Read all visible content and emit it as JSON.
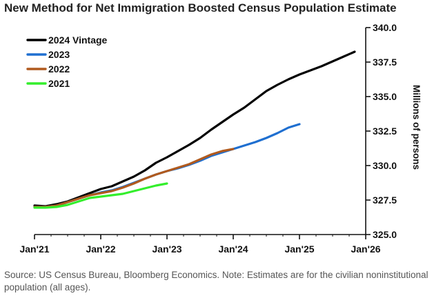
{
  "title": "New Method for Net Immigration Boosted Census Population Estimate",
  "source": "Source: US Census Bureau, Bloomberg Economics. Note: Estimates are for the civilian noninstitutional population (all ages).",
  "chart_data": {
    "type": "line",
    "title": "New Method for Net Immigration Boosted Census Population Estimate",
    "xlabel": "",
    "ylabel": "Millions of persons",
    "x_ticks": [
      "Jan'21",
      "Jan'22",
      "Jan'23",
      "Jan'24",
      "Jan'25",
      "Jan'26"
    ],
    "y_ticks": [
      "325.0",
      "327.5",
      "330.0",
      "332.5",
      "335.0",
      "337.5",
      "340.0"
    ],
    "xlim": [
      "2021-01",
      "2026-01"
    ],
    "ylim": [
      325.0,
      340.0
    ],
    "y_axis_side": "right",
    "grid": false,
    "legend_position": "top-left",
    "series": [
      {
        "name": "2024 Vintage",
        "color": "#000000",
        "x": [
          "2021-01",
          "2021-03",
          "2021-05",
          "2021-07",
          "2021-09",
          "2021-11",
          "2022-01",
          "2022-03",
          "2022-05",
          "2022-07",
          "2022-09",
          "2022-11",
          "2023-01",
          "2023-03",
          "2023-05",
          "2023-07",
          "2023-09",
          "2023-11",
          "2024-01",
          "2024-03",
          "2024-05",
          "2024-07",
          "2024-09",
          "2024-11",
          "2025-01",
          "2025-03",
          "2025-05",
          "2025-07",
          "2025-09",
          "2025-11"
        ],
        "values": [
          327.1,
          327.05,
          327.2,
          327.4,
          327.7,
          328.0,
          328.3,
          328.5,
          328.85,
          329.2,
          329.65,
          330.2,
          330.6,
          331.05,
          331.5,
          332.0,
          332.6,
          333.15,
          333.7,
          334.2,
          334.8,
          335.4,
          335.85,
          336.25,
          336.6,
          336.9,
          337.2,
          337.55,
          337.9,
          338.25
        ]
      },
      {
        "name": "2023",
        "color": "#1f6fd0",
        "x": [
          "2021-01",
          "2021-03",
          "2021-05",
          "2021-07",
          "2021-09",
          "2021-11",
          "2022-01",
          "2022-03",
          "2022-05",
          "2022-07",
          "2022-09",
          "2022-11",
          "2023-01",
          "2023-03",
          "2023-05",
          "2023-07",
          "2023-09",
          "2023-11",
          "2024-01",
          "2024-03",
          "2024-05",
          "2024-07",
          "2024-09",
          "2024-11",
          "2025-01"
        ],
        "values": [
          327.0,
          327.0,
          327.1,
          327.35,
          327.6,
          327.85,
          328.05,
          328.2,
          328.45,
          328.75,
          329.05,
          329.35,
          329.6,
          329.8,
          330.05,
          330.35,
          330.7,
          330.95,
          331.2,
          331.45,
          331.7,
          332.0,
          332.35,
          332.75,
          333.0
        ]
      },
      {
        "name": "2022",
        "color": "#b05a1e",
        "x": [
          "2021-01",
          "2021-03",
          "2021-05",
          "2021-07",
          "2021-09",
          "2021-11",
          "2022-01",
          "2022-03",
          "2022-05",
          "2022-07",
          "2022-09",
          "2022-11",
          "2023-01",
          "2023-03",
          "2023-05",
          "2023-07",
          "2023-09",
          "2023-11",
          "2024-01"
        ],
        "values": [
          327.0,
          327.0,
          327.1,
          327.35,
          327.6,
          327.85,
          328.0,
          328.15,
          328.4,
          328.7,
          329.05,
          329.35,
          329.6,
          329.85,
          330.1,
          330.45,
          330.8,
          331.05,
          331.2
        ]
      },
      {
        "name": "2021",
        "color": "#33ee2c",
        "x": [
          "2021-01",
          "2021-03",
          "2021-05",
          "2021-07",
          "2021-09",
          "2021-11",
          "2022-01",
          "2022-03",
          "2022-05",
          "2022-07",
          "2022-09",
          "2022-11",
          "2023-01"
        ],
        "values": [
          326.95,
          326.95,
          327.0,
          327.15,
          327.4,
          327.65,
          327.75,
          327.85,
          327.95,
          328.15,
          328.35,
          328.55,
          328.7
        ]
      }
    ]
  }
}
